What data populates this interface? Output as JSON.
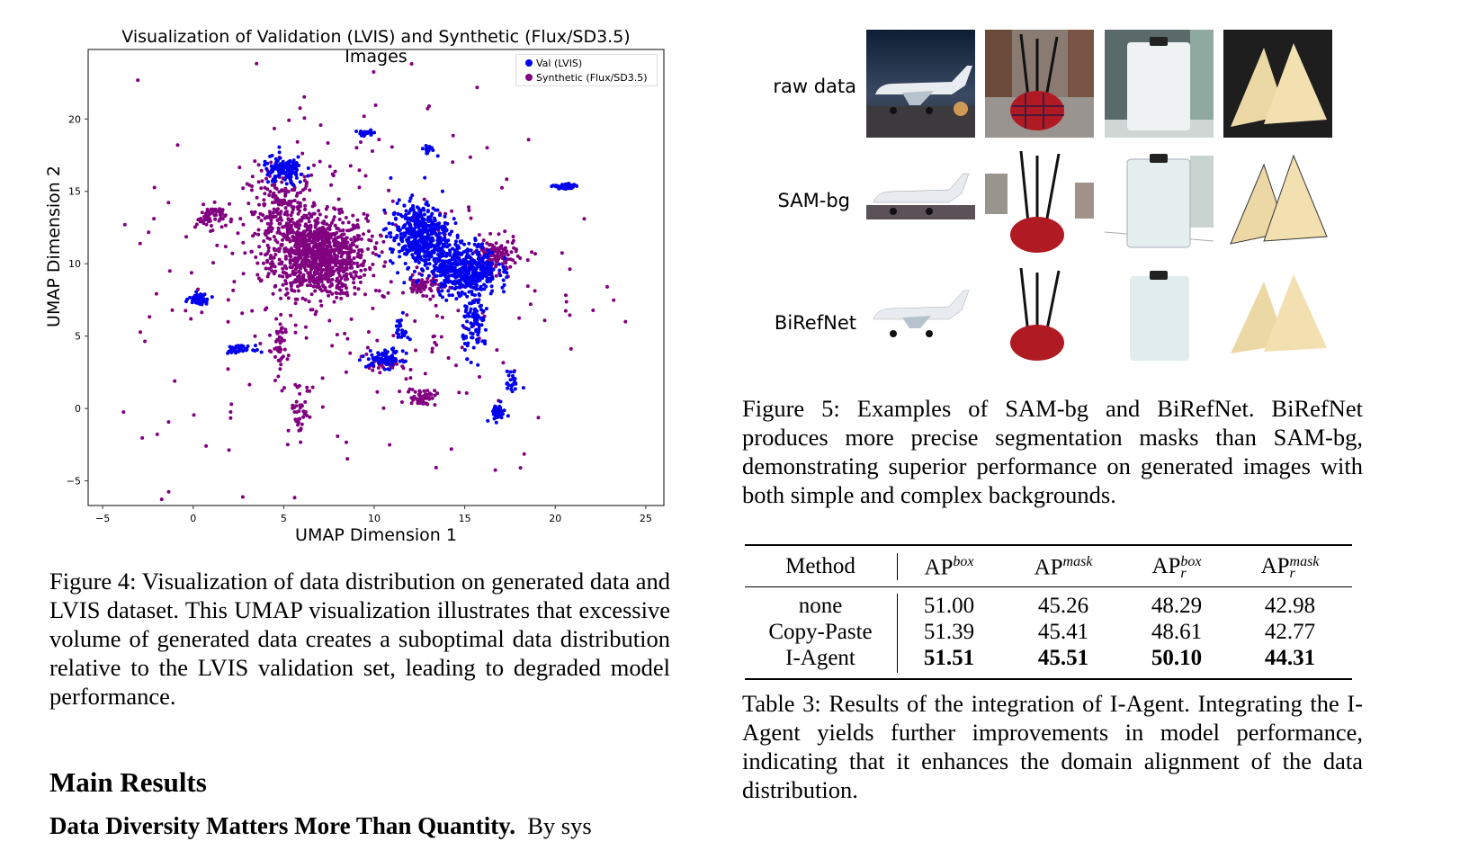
{
  "chart_data": {
    "type": "scatter",
    "title": "Visualization of Validation (LVIS) and Synthetic (Flux/SD3.5) Images",
    "xlabel": "UMAP Dimension 1",
    "ylabel": "UMAP Dimension 2",
    "xlim": [
      -5.8,
      26
    ],
    "ylim": [
      -6.7,
      24.8
    ],
    "xticks": [
      -5,
      0,
      5,
      10,
      15,
      20,
      25
    ],
    "yticks": [
      -5,
      0,
      5,
      10,
      15,
      20
    ],
    "grid": false,
    "legend_placement": "top-right",
    "series": [
      {
        "name": "Val (LVIS)",
        "color": "#0000ee",
        "clusters": [
          {
            "x": 12.5,
            "y": 12.0,
            "sx": 0.8,
            "sy": 1.1,
            "n": 450
          },
          {
            "x": 15.0,
            "y": 9.6,
            "sx": 0.9,
            "sy": 0.9,
            "n": 450
          },
          {
            "x": 15.6,
            "y": 6.0,
            "sx": 0.35,
            "sy": 1.1,
            "n": 100
          },
          {
            "x": 5.0,
            "y": 16.4,
            "sx": 0.6,
            "sy": 0.5,
            "n": 120
          },
          {
            "x": 0.3,
            "y": 7.6,
            "sx": 0.25,
            "sy": 0.18,
            "n": 60
          },
          {
            "x": 2.5,
            "y": 4.1,
            "sx": 0.4,
            "sy": 0.12,
            "n": 40
          },
          {
            "x": 10.6,
            "y": 3.4,
            "sx": 0.5,
            "sy": 0.3,
            "n": 80
          },
          {
            "x": 16.8,
            "y": -0.3,
            "sx": 0.22,
            "sy": 0.28,
            "n": 40
          },
          {
            "x": 20.5,
            "y": 15.3,
            "sx": 0.3,
            "sy": 0.12,
            "n": 40
          },
          {
            "x": 13.0,
            "y": 17.9,
            "sx": 0.2,
            "sy": 0.15,
            "n": 20
          },
          {
            "x": 9.5,
            "y": 19.0,
            "sx": 0.3,
            "sy": 0.1,
            "n": 20
          },
          {
            "x": 17.6,
            "y": 1.8,
            "sx": 0.15,
            "sy": 0.4,
            "n": 25
          },
          {
            "x": 11.5,
            "y": 5.5,
            "sx": 0.2,
            "sy": 0.5,
            "n": 25
          }
        ]
      },
      {
        "name": "Synthetic (Flux/SD3.5)",
        "color": "#800080",
        "clusters": [
          {
            "x": 7.0,
            "y": 10.5,
            "sx": 1.3,
            "sy": 1.4,
            "n": 900
          },
          {
            "x": 5.0,
            "y": 13.5,
            "sx": 1.0,
            "sy": 1.6,
            "n": 250
          },
          {
            "x": 1.0,
            "y": 13.2,
            "sx": 0.4,
            "sy": 0.4,
            "n": 60
          },
          {
            "x": 12.7,
            "y": 8.5,
            "sx": 0.5,
            "sy": 0.3,
            "n": 60
          },
          {
            "x": 16.7,
            "y": 10.5,
            "sx": 0.6,
            "sy": 0.6,
            "n": 120
          },
          {
            "x": 12.6,
            "y": 0.8,
            "sx": 0.4,
            "sy": 0.3,
            "n": 50
          },
          {
            "x": 5.9,
            "y": 0.0,
            "sx": 0.25,
            "sy": 1.0,
            "n": 40
          },
          {
            "x": 4.7,
            "y": 4.0,
            "sx": 0.2,
            "sy": 1.2,
            "n": 40
          },
          {
            "x": 10.5,
            "y": 3.0,
            "sx": 0.4,
            "sy": 0.2,
            "n": 30
          },
          {
            "x": 9.3,
            "y": 9.0,
            "sx": 6.5,
            "sy": 7.0,
            "n": 300
          }
        ]
      }
    ]
  },
  "figure5": {
    "row_labels": [
      "raw data",
      "SAM-bg",
      "BiRefNet"
    ],
    "columns": [
      "airplane",
      "bagpipe",
      "clipboard",
      "dumpling"
    ]
  },
  "captions": {
    "fig4": "Figure 4: Visualization of data distribution on generated data and LVIS dataset. This UMAP visualization illustrates that excessive volume of generated data creates a suboptimal data distribution relative to the LVIS validation set, leading to degraded model performance.",
    "fig5": "Figure 5: Examples of SAM-bg and BiRefNet. BiRefNet produces more precise segmentation masks than SAM-bg, demonstrating superior performance on generated images with both simple and complex backgrounds.",
    "table3": "Table 3: Results of the integration of I-Agent. Integrating the I-Agent yields further improvements in model performance, indicating that it enhances the domain alignment of the data distribution."
  },
  "table3": {
    "header": {
      "method": "Method",
      "c1": "AP",
      "c1sup": "box",
      "c2": "AP",
      "c2sup": "mask",
      "c3": "AP",
      "c3sup": "box",
      "c3sub": "r",
      "c4": "AP",
      "c4sup": "mask",
      "c4sub": "r"
    },
    "rows": [
      {
        "method": "none",
        "v": [
          "51.00",
          "45.26",
          "48.29",
          "42.98"
        ],
        "bold": false
      },
      {
        "method": "Copy-Paste",
        "v": [
          "51.39",
          "45.41",
          "48.61",
          "42.77"
        ],
        "bold": false
      },
      {
        "method": "I-Agent",
        "v": [
          "51.51",
          "45.51",
          "50.10",
          "44.31"
        ],
        "bold": true
      }
    ]
  },
  "section": {
    "heading": "Main Results",
    "para_bold": "Data Diversity Matters More Than Quantity.",
    "para_text": "By sys"
  }
}
